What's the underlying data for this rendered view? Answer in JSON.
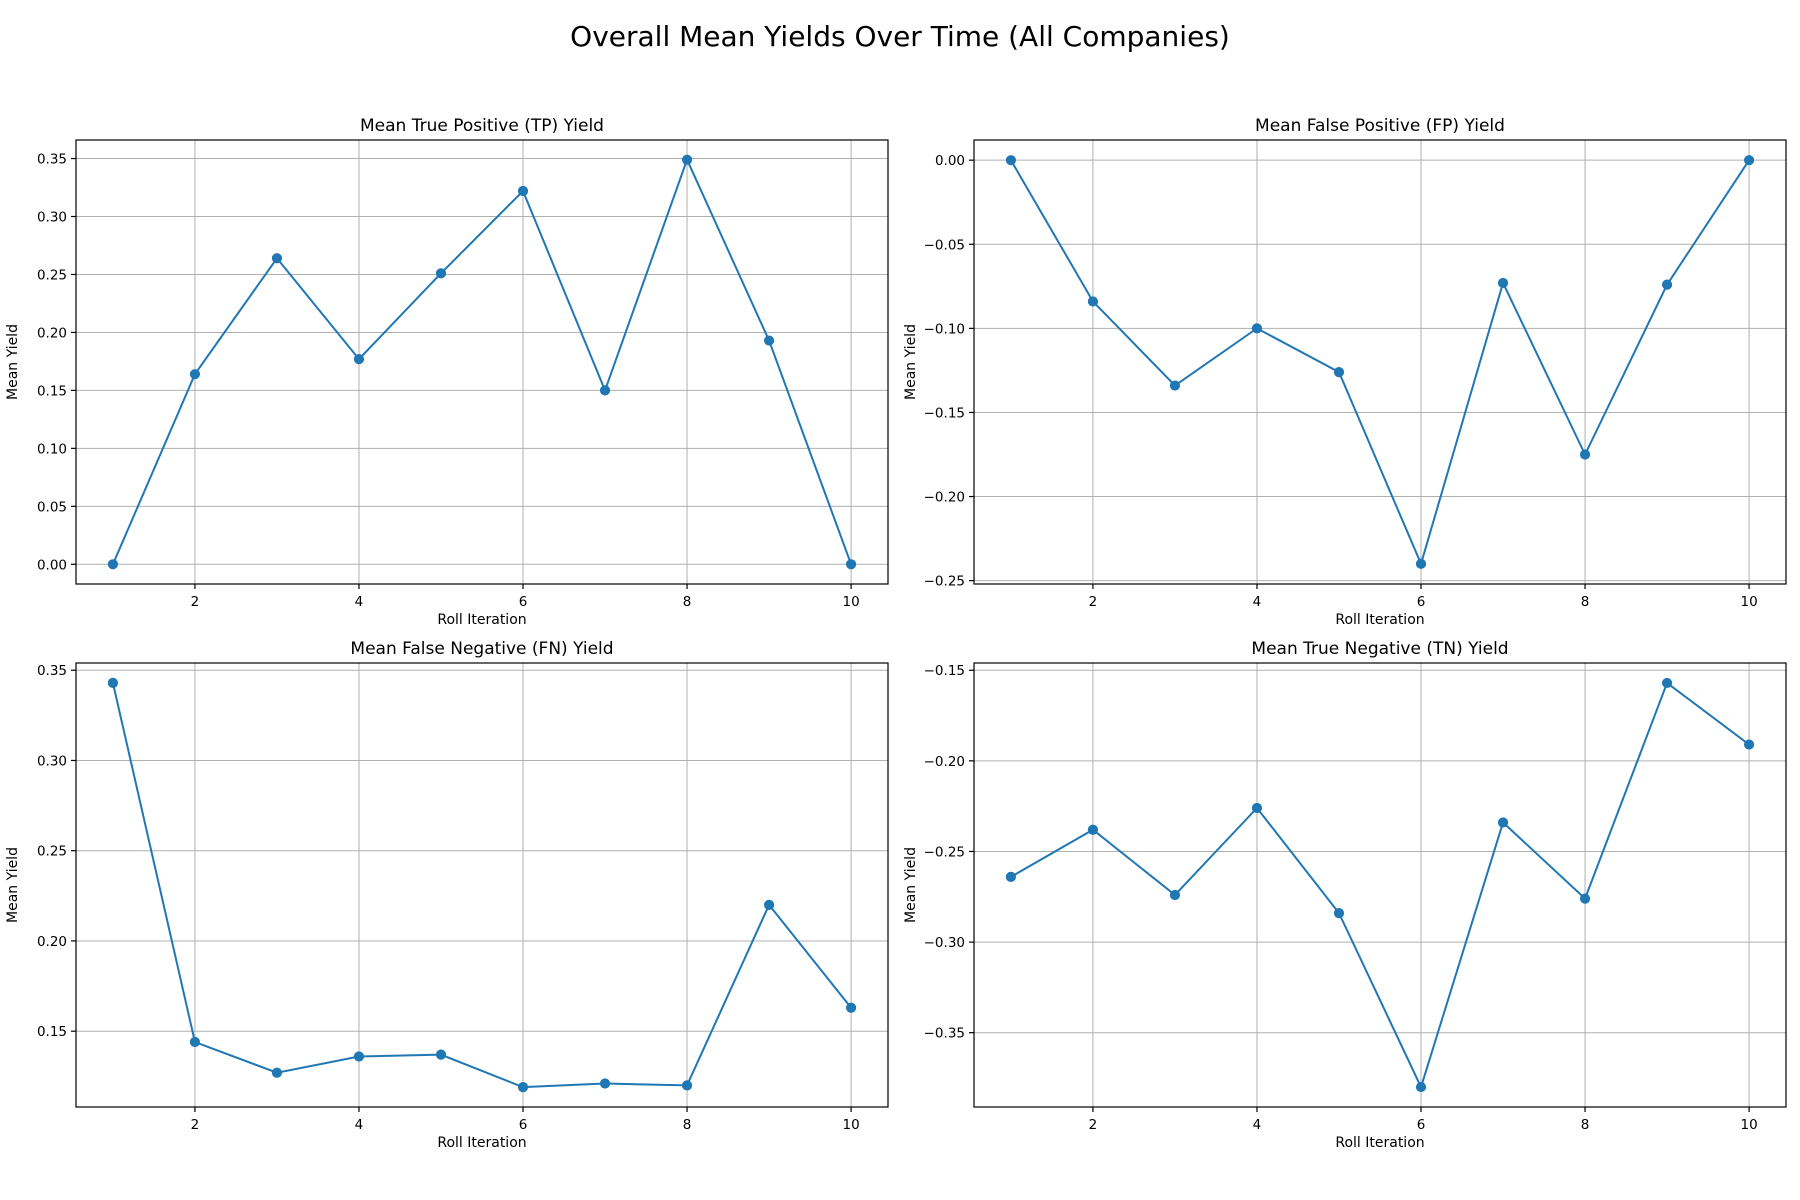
{
  "figure": {
    "title": "Overall Mean Yields Over Time (All Companies)"
  },
  "colors": {
    "line": "#1f77b4",
    "grid": "#b0b0b0"
  },
  "chart_data": [
    {
      "type": "line",
      "title": "Mean True Positive (TP) Yield",
      "xlabel": "Roll Iteration",
      "ylabel": "Mean Yield",
      "x": [
        1,
        2,
        3,
        4,
        5,
        6,
        7,
        8,
        9,
        10
      ],
      "values": [
        0.0,
        0.164,
        0.264,
        0.177,
        0.251,
        0.322,
        0.15,
        0.349,
        0.193,
        0.0
      ],
      "xlim": [
        0.55,
        10.45
      ],
      "ylim": [
        -0.017,
        0.366
      ],
      "xticks": [
        2,
        4,
        6,
        8,
        10
      ],
      "xtick_labels": [
        "2",
        "4",
        "6",
        "8",
        "10"
      ],
      "yticks": [
        0.0,
        0.05,
        0.1,
        0.15,
        0.2,
        0.25,
        0.3,
        0.35
      ],
      "ytick_labels": [
        "0.00",
        "0.05",
        "0.10",
        "0.15",
        "0.20",
        "0.25",
        "0.30",
        "0.35"
      ],
      "grid": true,
      "marker": "circle"
    },
    {
      "type": "line",
      "title": "Mean False Positive (FP) Yield",
      "xlabel": "Roll Iteration",
      "ylabel": "Mean Yield",
      "x": [
        1,
        2,
        3,
        4,
        5,
        6,
        7,
        8,
        9,
        10
      ],
      "values": [
        0.0,
        -0.084,
        -0.134,
        -0.1,
        -0.126,
        -0.24,
        -0.073,
        -0.175,
        -0.074,
        0.0
      ],
      "xlim": [
        0.55,
        10.45
      ],
      "ylim": [
        -0.252,
        0.012
      ],
      "xticks": [
        2,
        4,
        6,
        8,
        10
      ],
      "xtick_labels": [
        "2",
        "4",
        "6",
        "8",
        "10"
      ],
      "yticks": [
        0.0,
        -0.05,
        -0.1,
        -0.15,
        -0.2,
        -0.25
      ],
      "ytick_labels": [
        "0.00",
        "−0.05",
        "−0.10",
        "−0.15",
        "−0.20",
        "−0.25"
      ],
      "grid": true,
      "marker": "circle"
    },
    {
      "type": "line",
      "title": "Mean False Negative (FN) Yield",
      "xlabel": "Roll Iteration",
      "ylabel": "Mean Yield",
      "x": [
        1,
        2,
        3,
        4,
        5,
        6,
        7,
        8,
        9,
        10
      ],
      "values": [
        0.343,
        0.144,
        0.127,
        0.136,
        0.137,
        0.119,
        0.121,
        0.12,
        0.22,
        0.163
      ],
      "xlim": [
        0.55,
        10.45
      ],
      "ylim": [
        0.108,
        0.354
      ],
      "xticks": [
        2,
        4,
        6,
        8,
        10
      ],
      "xtick_labels": [
        "2",
        "4",
        "6",
        "8",
        "10"
      ],
      "yticks": [
        0.15,
        0.2,
        0.25,
        0.3,
        0.35
      ],
      "ytick_labels": [
        "0.15",
        "0.20",
        "0.25",
        "0.30",
        "0.35"
      ],
      "grid": true,
      "marker": "circle"
    },
    {
      "type": "line",
      "title": "Mean True Negative (TN) Yield",
      "xlabel": "Roll Iteration",
      "ylabel": "Mean Yield",
      "x": [
        1,
        2,
        3,
        4,
        5,
        6,
        7,
        8,
        9,
        10
      ],
      "values": [
        -0.264,
        -0.238,
        -0.274,
        -0.226,
        -0.284,
        -0.38,
        -0.234,
        -0.276,
        -0.157,
        -0.191
      ],
      "xlim": [
        0.55,
        10.45
      ],
      "ylim": [
        -0.391,
        -0.146
      ],
      "xticks": [
        2,
        4,
        6,
        8,
        10
      ],
      "xtick_labels": [
        "2",
        "4",
        "6",
        "8",
        "10"
      ],
      "yticks": [
        -0.15,
        -0.2,
        -0.25,
        -0.3,
        -0.35
      ],
      "ytick_labels": [
        "−0.15",
        "−0.20",
        "−0.25",
        "−0.30",
        "−0.35"
      ],
      "grid": true,
      "marker": "circle"
    }
  ]
}
